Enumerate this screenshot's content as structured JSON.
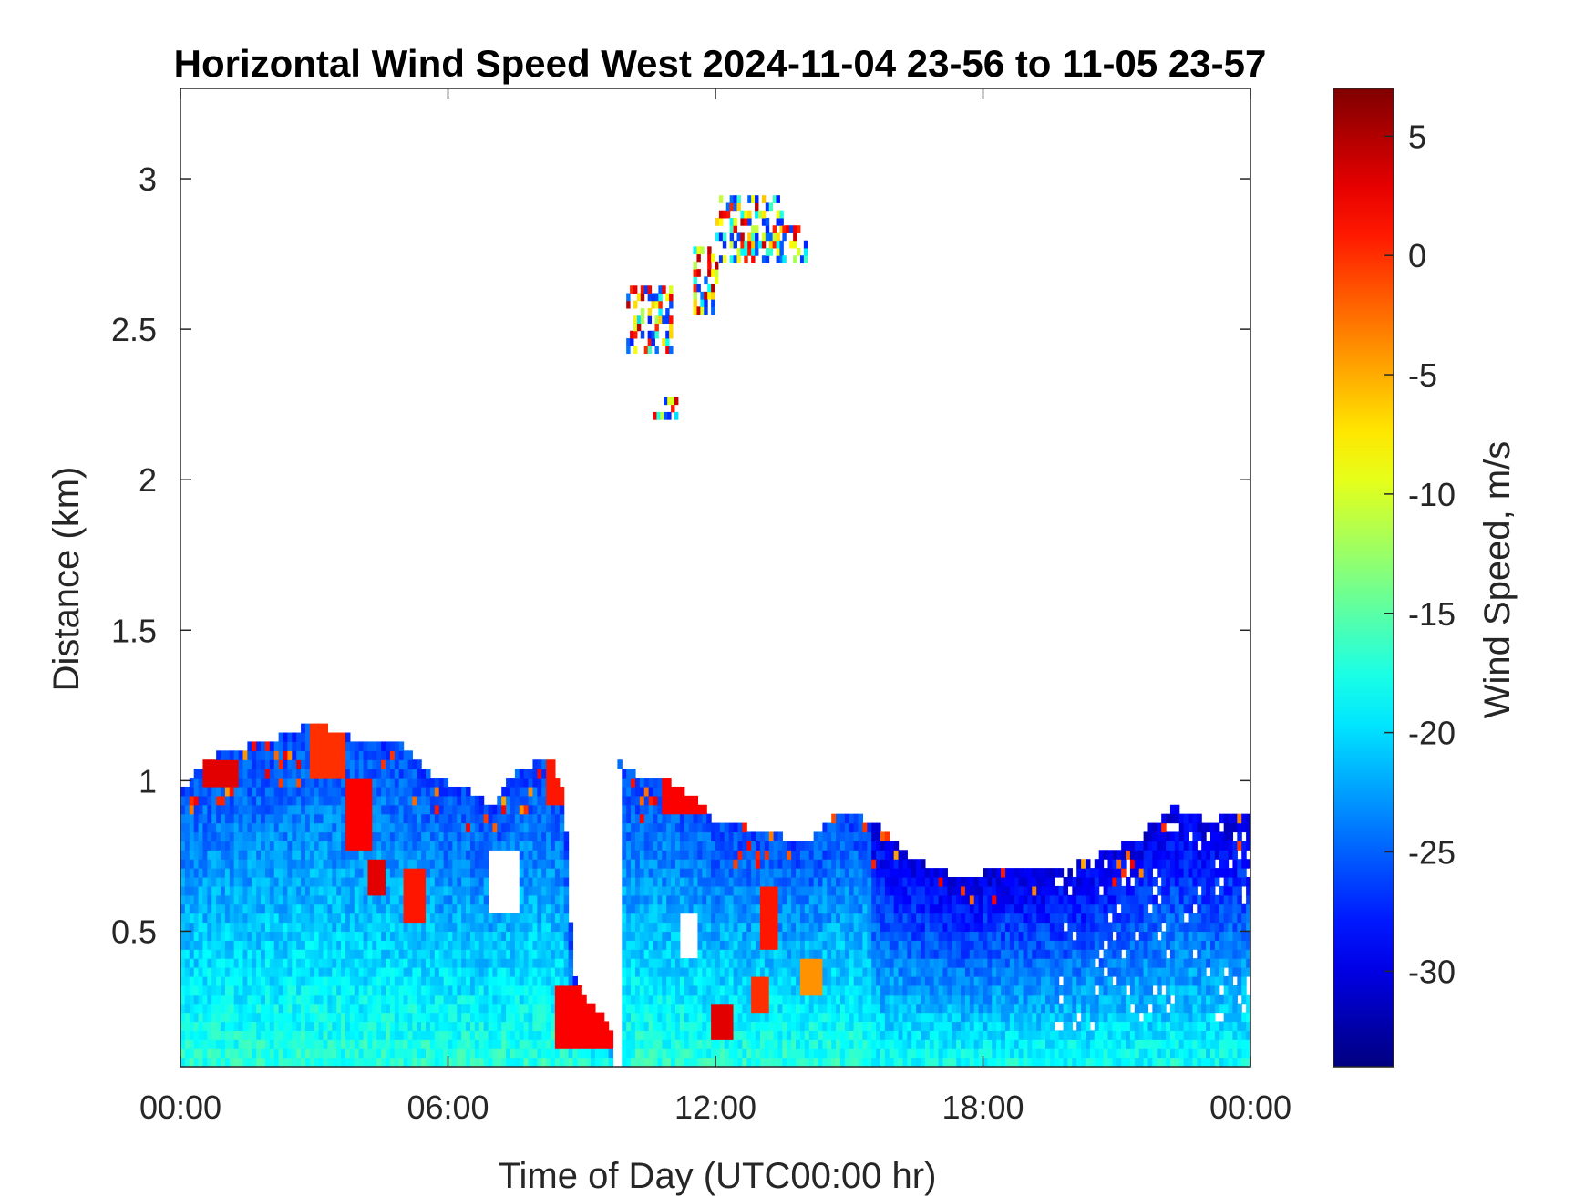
{
  "chart_data": {
    "type": "heatmap",
    "title": "Horizontal Wind Speed West 2024-11-04 23-56 to 11-05 23-57",
    "xlabel": "Time of Day (UTC00:00 hr)",
    "ylabel": "Distance (km)",
    "xlim": [
      0,
      24
    ],
    "ylim": [
      0.05,
      3.3
    ],
    "xticks": [
      0,
      6,
      12,
      18,
      24
    ],
    "xtick_labels": [
      "00:00",
      "06:00",
      "12:00",
      "18:00",
      "00:00"
    ],
    "yticks": [
      0.5,
      1,
      1.5,
      2,
      2.5,
      3
    ],
    "ytick_labels": [
      "0.5",
      "1",
      "1.5",
      "2",
      "2.5",
      "3"
    ],
    "colorbar": {
      "label": "Wind Speed, m/s",
      "colormap": "jet",
      "range": [
        -34,
        7
      ],
      "ticks": [
        5,
        0,
        -5,
        -10,
        -15,
        -20,
        -25,
        -30
      ],
      "tick_labels": [
        "5",
        "0",
        "-5",
        "-10",
        "-15",
        "-20",
        "-25",
        "-30"
      ]
    },
    "grid": false,
    "data_top_km": [
      [
        0.0,
        0.95
      ],
      [
        0.5,
        1.05
      ],
      [
        1.0,
        1.08
      ],
      [
        2.0,
        1.12
      ],
      [
        3.0,
        1.18
      ],
      [
        4.0,
        1.12
      ],
      [
        5.0,
        1.1
      ],
      [
        5.5,
        1.02
      ],
      [
        6.0,
        0.98
      ],
      [
        6.5,
        0.95
      ],
      [
        7.0,
        0.9
      ],
      [
        7.5,
        1.02
      ],
      [
        8.3,
        1.06
      ],
      [
        8.6,
        0.95
      ],
      [
        8.8,
        0.35
      ],
      [
        9.3,
        0.22
      ],
      [
        9.6,
        0.18
      ],
      [
        9.7,
        0.1
      ],
      [
        9.8,
        1.05
      ],
      [
        10.3,
        1.0
      ],
      [
        11.0,
        0.98
      ],
      [
        11.6,
        0.92
      ],
      [
        12.0,
        0.85
      ],
      [
        13.0,
        0.82
      ],
      [
        14.0,
        0.78
      ],
      [
        14.8,
        0.88
      ],
      [
        15.5,
        0.85
      ],
      [
        16.5,
        0.72
      ],
      [
        17.5,
        0.66
      ],
      [
        18.5,
        0.7
      ],
      [
        19.5,
        0.68
      ],
      [
        20.5,
        0.73
      ],
      [
        21.5,
        0.8
      ],
      [
        22.3,
        0.9
      ],
      [
        23.0,
        0.85
      ],
      [
        24.0,
        0.88
      ]
    ],
    "gaps": [
      {
        "t0": 9.7,
        "t1": 9.85,
        "z0": 0.05,
        "z1": 1.05
      },
      {
        "t0": 6.85,
        "t1": 7.55,
        "z0": 0.55,
        "z1": 0.78
      },
      {
        "t0": 11.2,
        "t1": 11.6,
        "z0": 0.42,
        "z1": 0.56
      }
    ],
    "hot_spots": [
      {
        "t": 0.9,
        "z": 1.03,
        "dt": 0.45,
        "dz": 0.05,
        "v": 3
      },
      {
        "t": 3.3,
        "z": 1.1,
        "dt": 0.4,
        "dz": 0.08,
        "v": 0
      },
      {
        "t": 4.0,
        "z": 0.88,
        "dt": 0.3,
        "dz": 0.12,
        "v": 2
      },
      {
        "t": 4.4,
        "z": 0.68,
        "dt": 0.2,
        "dz": 0.05,
        "v": 3
      },
      {
        "t": 5.2,
        "z": 0.62,
        "dt": 0.25,
        "dz": 0.08,
        "v": 1
      },
      {
        "t": 8.4,
        "z": 1.0,
        "dt": 0.25,
        "dz": 0.07,
        "v": 1
      },
      {
        "t": 9.1,
        "z": 0.22,
        "dt": 0.7,
        "dz": 0.1,
        "v": 2
      },
      {
        "t": 11.3,
        "z": 0.95,
        "dt": 0.5,
        "dz": 0.05,
        "v": 2
      },
      {
        "t": 12.1,
        "z": 0.2,
        "dt": 0.25,
        "dz": 0.06,
        "v": 3
      },
      {
        "t": 13.2,
        "z": 0.55,
        "dt": 0.2,
        "dz": 0.1,
        "v": 1
      },
      {
        "t": 13.0,
        "z": 0.28,
        "dt": 0.2,
        "dz": 0.06,
        "v": 0
      },
      {
        "t": 14.1,
        "z": 0.35,
        "dt": 0.25,
        "dz": 0.06,
        "v": -4
      }
    ],
    "upper_layer": [
      {
        "t0": 10.0,
        "t1": 11.0,
        "z0": 2.42,
        "z1": 2.62
      },
      {
        "t0": 11.5,
        "t1": 12.0,
        "z0": 2.55,
        "z1": 2.75
      },
      {
        "t0": 12.0,
        "t1": 13.5,
        "z0": 2.72,
        "z1": 2.92
      },
      {
        "t0": 13.5,
        "t1": 14.0,
        "z0": 2.72,
        "z1": 2.84
      },
      {
        "t0": 10.6,
        "t1": 11.1,
        "z0": 2.2,
        "z1": 2.26
      }
    ]
  }
}
